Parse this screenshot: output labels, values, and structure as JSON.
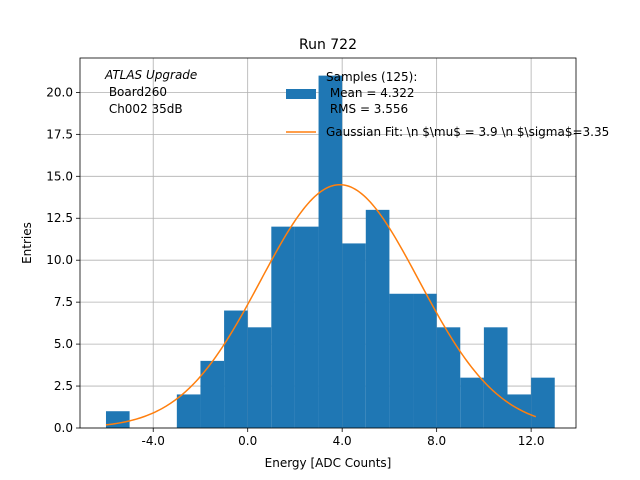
{
  "chart_data": {
    "type": "bar",
    "title": "Run 722",
    "xlabel": "Energy [ADC Counts]",
    "ylabel": "Entries",
    "xlim": [
      -7.1,
      13.9
    ],
    "ylim": [
      0,
      22.05
    ],
    "grid": true,
    "x_ticks": [
      -4.0,
      0.0,
      4.0,
      8.0,
      12.0
    ],
    "x_tick_labels": [
      "-4.0",
      "0.0",
      "4.0",
      "8.0",
      "12.0"
    ],
    "y_ticks": [
      0,
      2.5,
      5,
      7.5,
      10,
      12.5,
      15,
      17.5,
      20
    ],
    "y_tick_labels": [
      "0.0",
      "2.5",
      "5.0",
      "7.5",
      "10.0",
      "12.5",
      "15.0",
      "17.5",
      "20.0"
    ],
    "bin_edges": [
      -6,
      -5,
      -4,
      -3,
      -2,
      -1,
      0,
      1,
      2,
      3,
      4,
      5,
      6,
      7,
      8,
      9,
      10,
      11,
      12,
      13
    ],
    "counts": [
      1,
      0,
      0,
      2,
      4,
      7,
      6,
      12,
      12,
      21,
      11,
      13,
      8,
      8,
      6,
      3,
      6,
      2,
      3
    ],
    "fit": {
      "mu": 3.9,
      "sigma": 3.35,
      "amplitude": 14.5,
      "x_range": [
        -6,
        12.2
      ]
    },
    "annotation_lines": [
      "ATLAS Upgrade",
      " Board260",
      " Ch002 35dB"
    ],
    "legend_position": "top-right",
    "legend": {
      "histogram_lines": [
        "Samples (125):",
        " Mean = 4.322",
        " RMS = 3.556"
      ],
      "fit_label": "Gaussian Fit: \\n $\\mu$ = 3.9 \\n $\\sigma$=3.35"
    },
    "colors": {
      "bars": "#1f77b4",
      "fit": "#ff7f0e",
      "grid": "#b0b0b0"
    }
  }
}
